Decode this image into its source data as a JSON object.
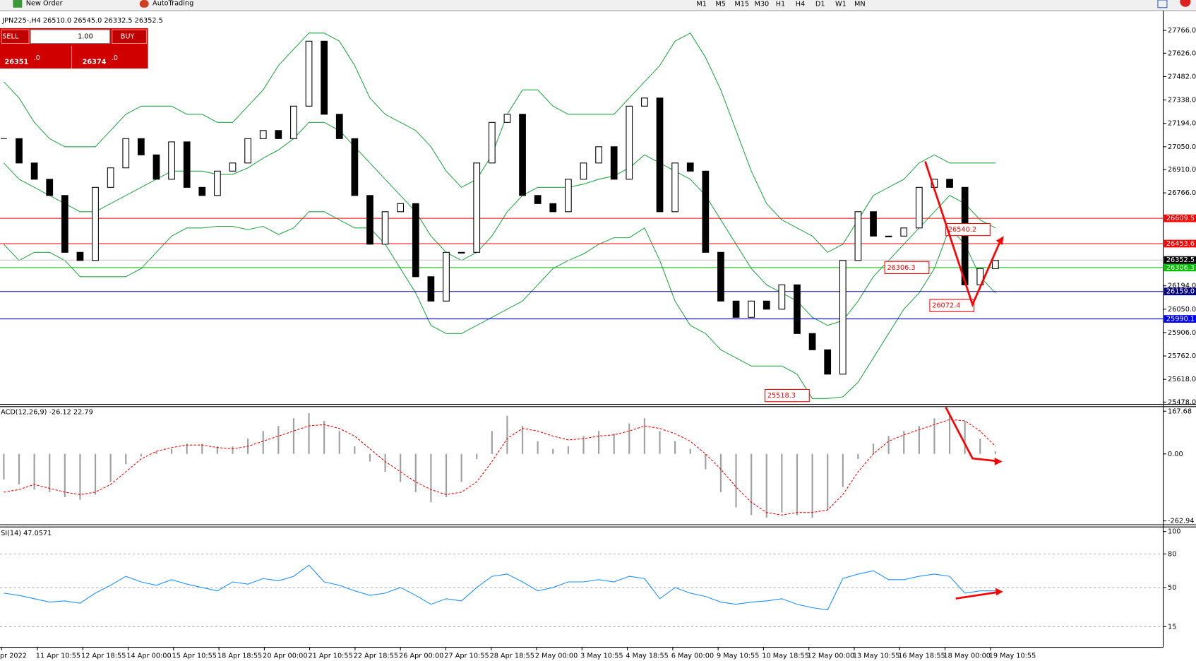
{
  "toolbar": {
    "new_order": "New Order",
    "auto_trading": "AutoTrading",
    "timeframes": [
      "M1",
      "M5",
      "M15",
      "M30",
      "H1",
      "H4",
      "D1",
      "W1",
      "MN"
    ]
  },
  "order_panel": {
    "sell": "SELL",
    "lot": "1.00",
    "buy": "BUY",
    "bid_main": "26351",
    "bid_frac": ".0",
    "ask_main": "26374",
    "ask_frac": ".0"
  },
  "chart_data": [
    {
      "type": "candlestick",
      "title": "JPN225-,H4 26510.0 26545.0 26332.5 26352.5",
      "ylim": [
        25478,
        27766
      ],
      "yticks": [
        {
          "value": 27766,
          "label": "27766.0"
        },
        {
          "value": 27626,
          "label": "27626.0"
        },
        {
          "value": 27482,
          "label": "27482.0"
        },
        {
          "value": 27338,
          "label": "27338.0"
        },
        {
          "value": 27194,
          "label": "27194.0"
        },
        {
          "value": 27050,
          "label": "27050.0"
        },
        {
          "value": 26910,
          "label": "26910.0"
        },
        {
          "value": 26766,
          "label": "26766.0"
        },
        {
          "value": 26194,
          "label": "26194.0"
        },
        {
          "value": 26050,
          "label": "26050.0"
        },
        {
          "value": 25906,
          "label": "25906.0"
        },
        {
          "value": 25762,
          "label": "25762.0"
        },
        {
          "value": 25618,
          "label": "25618.0"
        },
        {
          "value": 25478,
          "label": "25478.0"
        }
      ],
      "xticks": [
        "pr 2022",
        "11 Apr 10:55",
        "12 Apr 18:55",
        "14 Apr 00:00",
        "15 Apr 10:55",
        "18 Apr 18:55",
        "20 Apr 00:00",
        "21 Apr 10:55",
        "22 Apr 18:55",
        "26 Apr 00:00",
        "27 Apr 10:55",
        "28 Apr 18:55",
        "2 May 00:00",
        "3 May 10:55",
        "4 May 18:55",
        "6 May 00:00",
        "9 May 10:55",
        "10 May 18:55",
        "12 May 00:00",
        "13 May 10:55",
        "16 May 18:55",
        "18 May 00:00",
        "19 May 10:55"
      ],
      "closes": [
        27100,
        26950,
        26850,
        26750,
        26400,
        26350,
        26800,
        26920,
        27100,
        27000,
        26850,
        27080,
        26800,
        26750,
        26900,
        26950,
        27100,
        27150,
        27100,
        27300,
        27700,
        27250,
        27100,
        26750,
        26450,
        26650,
        26700,
        26250,
        26100,
        26400,
        26400,
        26950,
        27200,
        27250,
        26750,
        26700,
        26650,
        26850,
        26950,
        27050,
        26850,
        27300,
        27350,
        26650,
        26950,
        26900,
        26400,
        26100,
        26000,
        26100,
        26050,
        26200,
        25900,
        25800,
        25650,
        26350,
        26650,
        26500,
        26500,
        26550,
        26800,
        26850,
        26800,
        26200,
        26300,
        26350
      ],
      "bands": [
        {
          "color": "#22a845",
          "values": [
            27450,
            27350,
            27200,
            27100,
            27050,
            27050,
            27050,
            27150,
            27250,
            27300,
            27300,
            27300,
            27250,
            27250,
            27200,
            27200,
            27300,
            27400,
            27550,
            27650,
            27750,
            27750,
            27700,
            27550,
            27350,
            27250,
            27200,
            27150,
            27050,
            26900,
            26800,
            26850,
            27000,
            27250,
            27400,
            27400,
            27300,
            27250,
            27250,
            27250,
            27250,
            27350,
            27450,
            27550,
            27700,
            27750,
            27600,
            27400,
            27150,
            26900,
            26700,
            26600,
            26550,
            26500,
            26400,
            26450,
            26600,
            26750,
            26800,
            26850,
            26950,
            27000,
            26950,
            26950,
            26950,
            26950
          ]
        },
        {
          "color": "#22a845",
          "values": [
            26950,
            26850,
            26800,
            26750,
            26700,
            26650,
            26650,
            26700,
            26750,
            26800,
            26850,
            26900,
            26900,
            26900,
            26880,
            26880,
            26920,
            26980,
            27030,
            27100,
            27200,
            27200,
            27150,
            27050,
            26950,
            26850,
            26750,
            26650,
            26500,
            26400,
            26350,
            26400,
            26500,
            26650,
            26750,
            26800,
            26800,
            26800,
            26820,
            26850,
            26870,
            26920,
            27000,
            26950,
            26900,
            26850,
            26750,
            26600,
            26450,
            26300,
            26200,
            26150,
            26100,
            26000,
            25950,
            25980,
            26100,
            26250,
            26350,
            26450,
            26550,
            26650,
            26750,
            26700,
            26600,
            26550
          ]
        },
        {
          "color": "#22a845",
          "values": [
            26450,
            26350,
            26400,
            26400,
            26350,
            26250,
            26250,
            26250,
            26250,
            26300,
            26400,
            26500,
            26550,
            26550,
            26560,
            26560,
            26540,
            26560,
            26510,
            26550,
            26650,
            26650,
            26600,
            26550,
            26550,
            26450,
            26300,
            26150,
            25950,
            25900,
            25900,
            25950,
            26000,
            26050,
            26100,
            26200,
            26300,
            26350,
            26390,
            26450,
            26490,
            26490,
            26550,
            26350,
            26100,
            25950,
            25900,
            25800,
            25750,
            25700,
            25700,
            25700,
            25650,
            25500,
            25500,
            25510,
            25600,
            25750,
            25900,
            26050,
            26150,
            26300,
            26550,
            26450,
            26250,
            26150
          ]
        }
      ],
      "levels": [
        {
          "price": 26609.5,
          "color": "#ff0000",
          "text": "#ffffff"
        },
        {
          "price": 26453.6,
          "color": "#ff0000",
          "text": "#ffffff"
        },
        {
          "price": 26352.5,
          "color": "#c0c0c0",
          "text": "#ffffff",
          "bg": "#000000"
        },
        {
          "price": 26306.3,
          "color": "#00c000",
          "text": "#ffffff"
        },
        {
          "price": {
            "value": 26159,
            "label": "26159.0"
          },
          "color": "#000080",
          "text": "#ffffff"
        },
        {
          "price": 25990.1,
          "color": "#0000ff",
          "text": "#ffffff"
        }
      ],
      "annotations": [
        25518.3,
        26540.2,
        26306.3,
        26072.4
      ]
    },
    {
      "type": "macd",
      "title": "ACD(12,26,9) -26.12 22.79",
      "ylim": [
        -262.94,
        167.68
      ],
      "yticks": [
        167.68,
        {
          "value": 0,
          "label": "0.00"
        },
        -262.94
      ],
      "series": [
        {
          "color": "#a0a0a0",
          "values": [
            -100,
            -120,
            -140,
            -150,
            -170,
            -180,
            -160,
            -110,
            -40,
            -10,
            10,
            20,
            40,
            40,
            30,
            30,
            60,
            90,
            110,
            140,
            160,
            130,
            90,
            30,
            -30,
            -70,
            -110,
            -150,
            -190,
            -170,
            -110,
            -20,
            90,
            150,
            110,
            50,
            20,
            30,
            70,
            90,
            80,
            120,
            140,
            90,
            50,
            20,
            -60,
            -150,
            -210,
            -240,
            -250,
            -230,
            -240,
            -250,
            -220,
            -130,
            -20,
            40,
            70,
            90,
            110,
            140,
            160,
            130,
            60,
            10
          ]
        },
        {
          "color": "#ff0000",
          "values": [
            -150,
            -140,
            -120,
            -135,
            -150,
            -160,
            -150,
            -120,
            -70,
            -20,
            10,
            25,
            35,
            35,
            25,
            20,
            30,
            50,
            70,
            90,
            110,
            115,
            100,
            70,
            20,
            -30,
            -70,
            -110,
            -140,
            -160,
            -150,
            -110,
            -30,
            60,
            100,
            90,
            70,
            55,
            60,
            70,
            75,
            90,
            110,
            100,
            80,
            50,
            0,
            -60,
            -130,
            -190,
            -230,
            -240,
            -230,
            -230,
            -220,
            -160,
            -70,
            0,
            50,
            75,
            95,
            115,
            135,
            130,
            90,
            30
          ]
        }
      ]
    },
    {
      "type": "rsi",
      "title": "SI(14) 47.0571",
      "ylim": [
        0,
        100
      ],
      "yticks": [
        100,
        80,
        50,
        15
      ],
      "grid": [
        80,
        50,
        15
      ],
      "series": [
        {
          "color": "#1e90ff",
          "values": [
            45,
            43,
            40,
            37,
            38,
            36,
            45,
            52,
            60,
            55,
            52,
            57,
            53,
            50,
            47,
            55,
            53,
            58,
            56,
            60,
            70,
            55,
            52,
            47,
            43,
            45,
            50,
            43,
            35,
            40,
            38,
            50,
            60,
            62,
            55,
            47,
            50,
            55,
            55,
            57,
            55,
            60,
            58,
            40,
            50,
            45,
            42,
            37,
            35,
            37,
            38,
            40,
            35,
            32,
            30,
            58,
            62,
            65,
            57,
            57,
            60,
            62,
            60,
            45,
            47,
            47
          ]
        }
      ]
    }
  ]
}
